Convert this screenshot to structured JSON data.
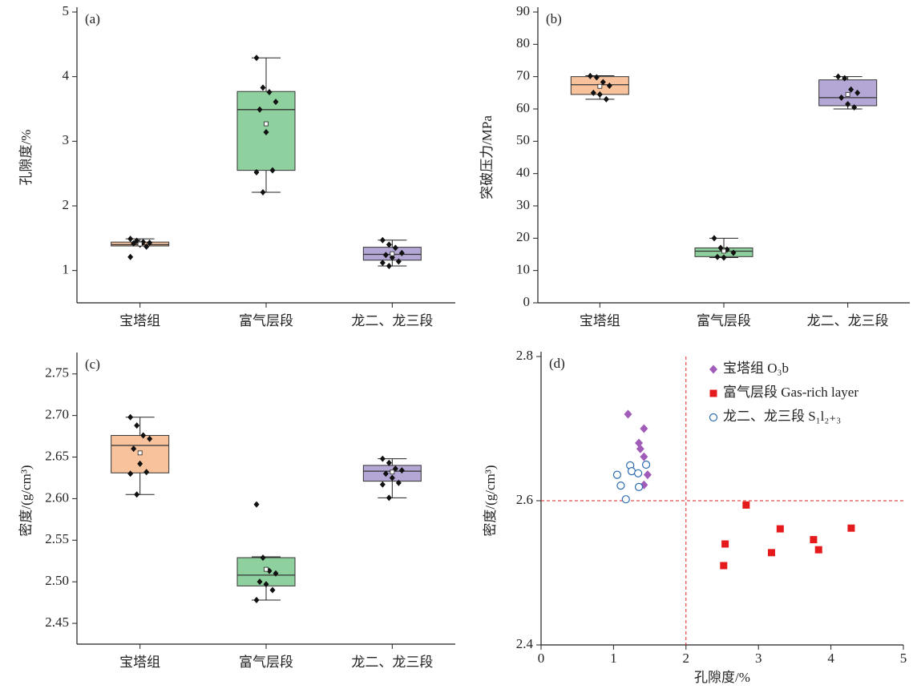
{
  "chart_data": [
    {
      "type": "box",
      "label": "(a)",
      "ylabel": "孔隙度/%",
      "categories": [
        "宝塔组",
        "富气层段",
        "龙二、龙三段"
      ],
      "colors": [
        "#f8c39c",
        "#8fd19e",
        "#b4a7d6"
      ],
      "ylim": [
        0.5,
        5
      ],
      "yticks": [
        1,
        2,
        3,
        4,
        5
      ],
      "boxes": [
        {
          "whislo": 1.38,
          "q1": 1.38,
          "med": 1.4,
          "q3": 1.44,
          "whishi": 1.49,
          "mean": 1.41,
          "points": [
            1.49,
            1.46,
            1.44,
            1.43,
            1.42,
            1.4,
            1.37,
            1.21
          ]
        },
        {
          "whislo": 2.21,
          "q1": 2.55,
          "med": 3.49,
          "q3": 3.77,
          "whishi": 4.29,
          "mean": 3.27,
          "points": [
            4.29,
            3.83,
            3.76,
            3.61,
            3.49,
            3.14,
            2.55,
            2.52,
            2.21
          ]
        },
        {
          "whislo": 1.07,
          "q1": 1.16,
          "med": 1.25,
          "q3": 1.36,
          "whishi": 1.47,
          "mean": 1.26,
          "points": [
            1.47,
            1.4,
            1.35,
            1.27,
            1.24,
            1.2,
            1.14,
            1.12,
            1.07
          ]
        }
      ]
    },
    {
      "type": "box",
      "label": "(b)",
      "ylabel": "突破压力/MPa",
      "categories": [
        "宝塔组",
        "富气层段",
        "龙二、龙三段"
      ],
      "colors": [
        "#f8c39c",
        "#8fd19e",
        "#b4a7d6"
      ],
      "ylim": [
        0,
        90
      ],
      "yticks": [
        0,
        10,
        20,
        30,
        40,
        50,
        60,
        70,
        80,
        90
      ],
      "boxes": [
        {
          "whislo": 63,
          "q1": 64.5,
          "med": 67.5,
          "q3": 70,
          "whishi": 70.3,
          "mean": 67,
          "points": [
            70.2,
            69.8,
            68.3,
            67.2,
            65,
            64.5,
            63
          ]
        },
        {
          "whislo": 14,
          "q1": 14.3,
          "med": 16,
          "q3": 17,
          "whishi": 20,
          "mean": 16,
          "points": [
            20,
            17,
            16.5,
            15.5,
            14.2,
            14
          ]
        },
        {
          "whislo": 60,
          "q1": 61,
          "med": 63.5,
          "q3": 69,
          "whishi": 70,
          "mean": 64.5,
          "points": [
            70,
            69.5,
            66,
            65,
            63.5,
            61.5,
            60.5
          ]
        }
      ]
    },
    {
      "type": "box",
      "label": "(c)",
      "ylabel": "密度/(g/cm³)",
      "categories": [
        "宝塔组",
        "富气层段",
        "龙二、龙三段"
      ],
      "colors": [
        "#f8c39c",
        "#8fd19e",
        "#b4a7d6"
      ],
      "ylim": [
        2.425,
        2.77
      ],
      "yticks": [
        2.45,
        {
          "value": 2.5,
          "label": "2.50"
        },
        2.55,
        {
          "value": 2.6,
          "label": "2.60"
        },
        2.65,
        {
          "value": 2.7,
          "label": "2.70"
        },
        2.75
      ],
      "boxes": [
        {
          "whislo": 2.605,
          "q1": 2.631,
          "med": 2.664,
          "q3": 2.676,
          "whishi": 2.698,
          "mean": 2.655,
          "points": [
            2.698,
            2.688,
            2.676,
            2.672,
            2.66,
            2.642,
            2.632,
            2.63,
            2.605
          ]
        },
        {
          "whislo": 2.478,
          "q1": 2.495,
          "med": 2.508,
          "q3": 2.529,
          "whishi": 2.53,
          "mean": 2.515,
          "points": [
            2.593,
            2.529,
            2.513,
            2.51,
            2.5,
            2.497,
            2.49,
            2.478
          ]
        },
        {
          "whislo": 2.601,
          "q1": 2.621,
          "med": 2.633,
          "q3": 2.64,
          "whishi": 2.648,
          "mean": 2.632,
          "points": [
            2.648,
            2.643,
            2.636,
            2.634,
            2.63,
            2.625,
            2.619,
            2.617,
            2.601
          ]
        }
      ]
    },
    {
      "type": "scatter",
      "label": "(d)",
      "ylabel": "密度/(g/cm³)",
      "xlabel": "孔隙度/%",
      "xlim": [
        0,
        5
      ],
      "xticks": [
        0,
        1,
        2,
        3,
        4,
        5
      ],
      "ylim": [
        2.4,
        2.8
      ],
      "yticks": [
        2.4,
        2.6,
        2.8
      ],
      "xref": 2,
      "yref": 2.6,
      "ref_color": "#e02020",
      "series": [
        {
          "name": "宝塔组 O₃b",
          "color": "#a05cb8",
          "marker": "diamond",
          "x": [
            1.2,
            1.42,
            1.35,
            1.37,
            1.42,
            1.47,
            1.42
          ],
          "y": [
            2.72,
            2.7,
            2.68,
            2.672,
            2.661,
            2.636,
            2.622
          ]
        },
        {
          "name": "富气层段 Gas-rich layer",
          "color": "#e41a1c",
          "marker": "square",
          "x": [
            2.83,
            3.3,
            3.76,
            4.28,
            3.83,
            3.18,
            2.54,
            2.52
          ],
          "y": [
            2.594,
            2.561,
            2.546,
            2.562,
            2.532,
            2.528,
            2.54,
            2.51
          ]
        },
        {
          "name": "龙二、龙三段 S₁l₂₊₃",
          "color": "#2b6cb0",
          "marker": "circle",
          "x": [
            1.05,
            1.23,
            1.25,
            1.34,
            1.45,
            1.35,
            1.1,
            1.17
          ],
          "y": [
            2.636,
            2.649,
            2.641,
            2.638,
            2.65,
            2.619,
            2.621,
            2.602
          ]
        }
      ]
    }
  ]
}
